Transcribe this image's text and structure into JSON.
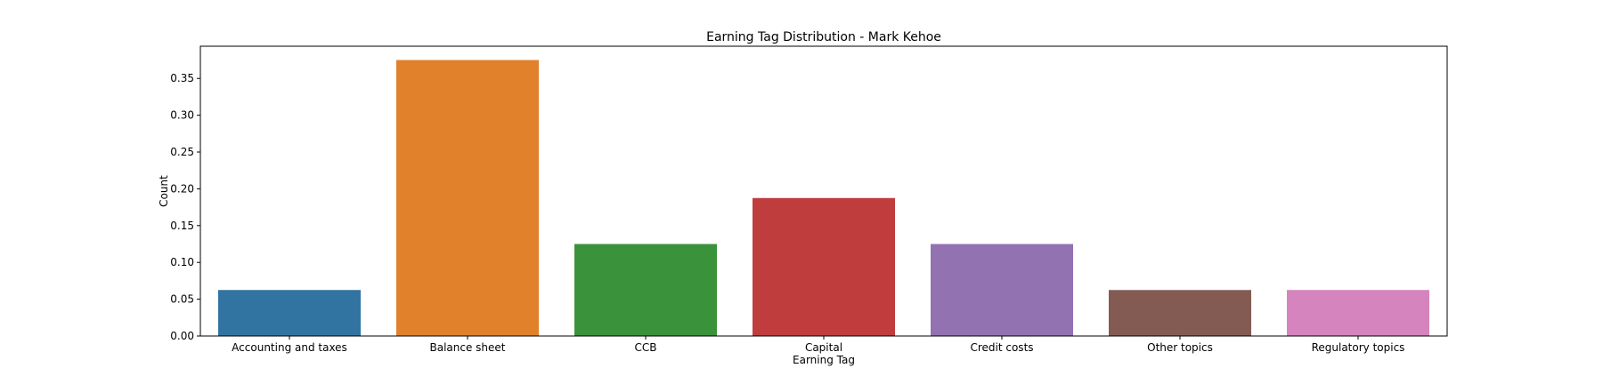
{
  "chart_data": {
    "type": "bar",
    "title": "Earning Tag Distribution - Mark Kehoe",
    "xlabel": "Earning Tag",
    "ylabel": "Count",
    "categories": [
      "Accounting and taxes",
      "Balance sheet",
      "CCB",
      "Capital",
      "Credit costs",
      "Other topics",
      "Regulatory topics"
    ],
    "values": [
      0.0625,
      0.375,
      0.125,
      0.1875,
      0.125,
      0.0625,
      0.0625
    ],
    "colors": [
      "#3274a1",
      "#e1812c",
      "#3a923a",
      "#c03d3e",
      "#9372b2",
      "#845b53",
      "#d684bd"
    ],
    "ylim": [
      0,
      0.39375
    ],
    "yticks": [
      0.0,
      0.05,
      0.1,
      0.15,
      0.2,
      0.25,
      0.3,
      0.35
    ],
    "ytick_labels": [
      "0.00",
      "0.05",
      "0.10",
      "0.15",
      "0.20",
      "0.25",
      "0.30",
      "0.35"
    ],
    "grid": false,
    "legend": "none"
  }
}
